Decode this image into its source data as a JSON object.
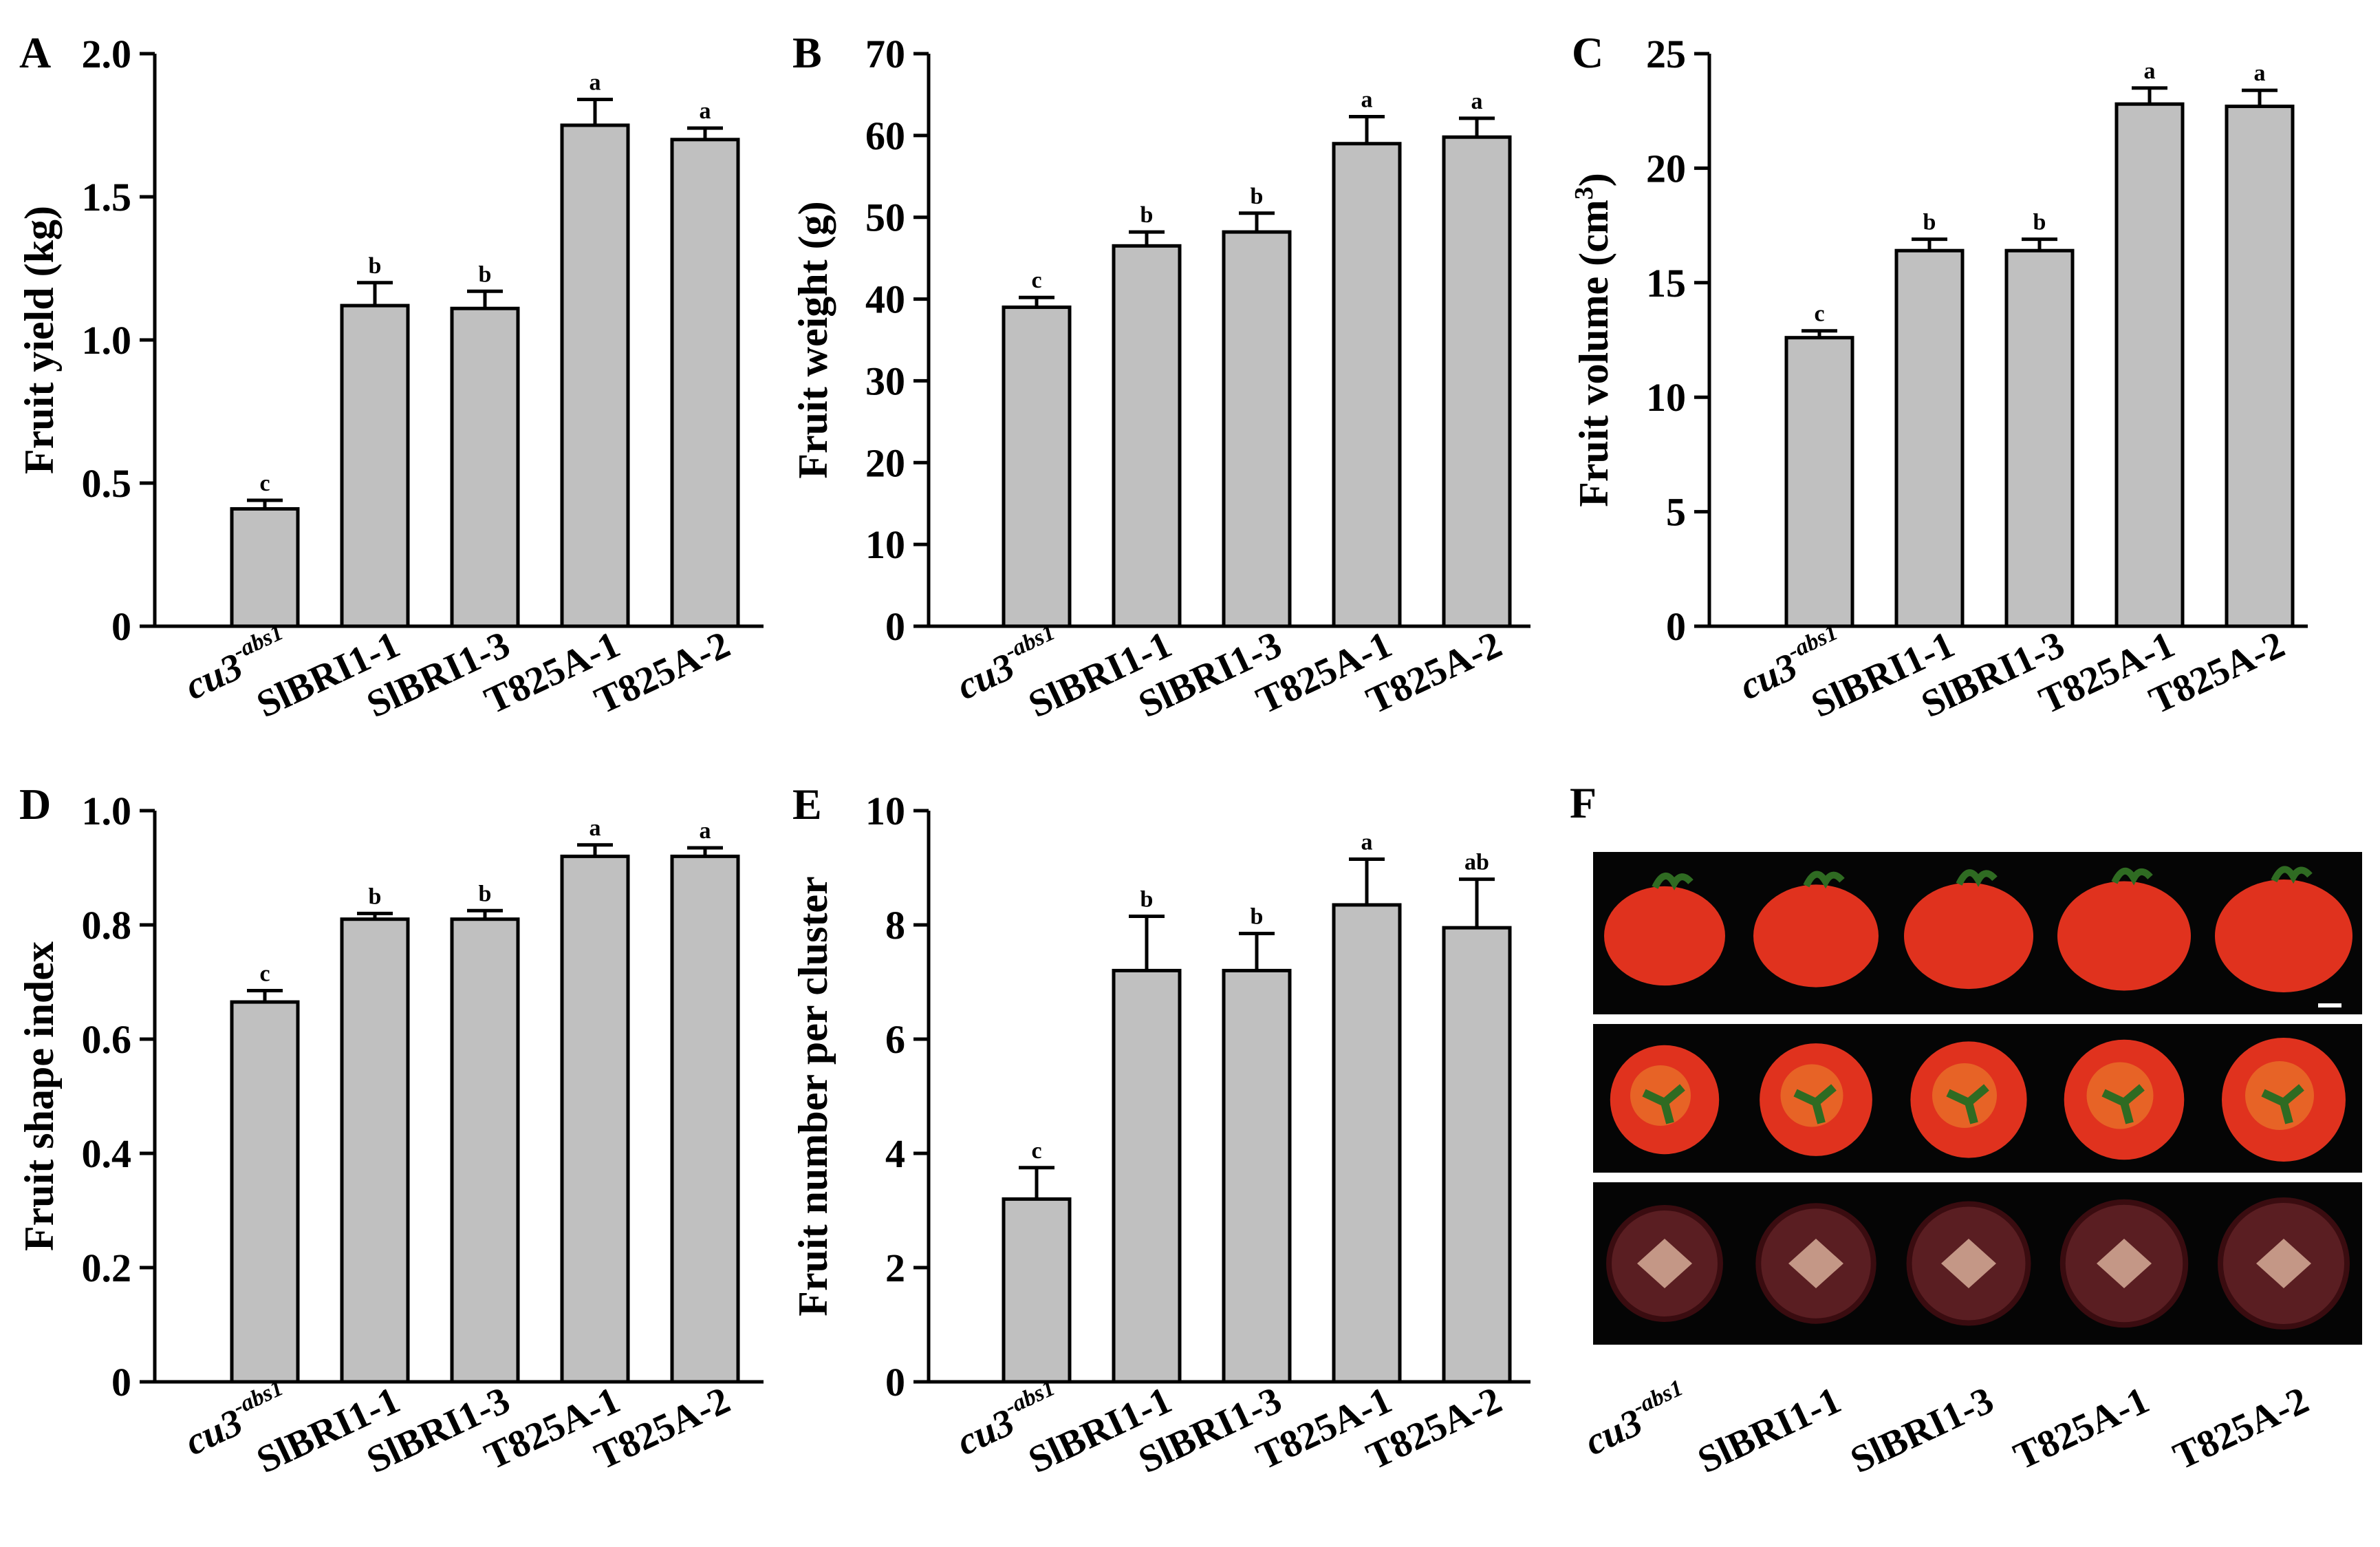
{
  "colors": {
    "bar": "#c0c0c0",
    "stroke": "#000000",
    "photo_bg": "#050505",
    "fruit": "#e0321e",
    "fruit_light": "#f0a030",
    "cut": "#5a1e22",
    "cut_light": "#e8c0a8"
  },
  "labels": {
    "genotype_prefix": "cu3",
    "genotype_suffix": "-abs1",
    "categories": [
      "SlBRI1-1",
      "SlBRI1-3",
      "T825A-1",
      "T825A-2"
    ]
  },
  "chart_data": [
    {
      "panel": "A",
      "type": "bar",
      "ylabel": "Fruit yield (kg)",
      "ylim": [
        0,
        2.0
      ],
      "yticks": [
        "0",
        "0.5",
        "1.0",
        "1.5",
        "2.0"
      ],
      "values": [
        0.41,
        1.12,
        1.11,
        1.75,
        1.7
      ],
      "errors": [
        0.03,
        0.08,
        0.06,
        0.09,
        0.04
      ],
      "letters": [
        "c",
        "b",
        "b",
        "a",
        "a"
      ]
    },
    {
      "panel": "B",
      "type": "bar",
      "ylabel": "Fruit weight (g)",
      "ylim": [
        0,
        70
      ],
      "yticks": [
        "0",
        "10",
        "20",
        "30",
        "40",
        "50",
        "60",
        "70"
      ],
      "values": [
        39.0,
        46.5,
        48.2,
        59.0,
        59.8
      ],
      "errors": [
        1.2,
        1.7,
        2.3,
        3.3,
        2.3
      ],
      "letters": [
        "c",
        "b",
        "b",
        "a",
        "a"
      ]
    },
    {
      "panel": "C",
      "type": "bar",
      "ylabel": "Fruit volume (cm",
      "ylabel_sup": "3",
      "ylabel_end": ")",
      "ylim": [
        0,
        25
      ],
      "yticks": [
        "0",
        "5",
        "10",
        "15",
        "20",
        "25"
      ],
      "values": [
        12.6,
        16.4,
        16.4,
        22.8,
        22.7
      ],
      "errors": [
        0.3,
        0.5,
        0.5,
        0.7,
        0.7
      ],
      "letters": [
        "c",
        "b",
        "b",
        "a",
        "a"
      ]
    },
    {
      "panel": "D",
      "type": "bar",
      "ylabel": "Fruit shape index",
      "ylim": [
        0,
        1.0
      ],
      "yticks": [
        "0",
        "0.2",
        "0.4",
        "0.6",
        "0.8",
        "1.0"
      ],
      "values": [
        0.665,
        0.81,
        0.81,
        0.92,
        0.92
      ],
      "errors": [
        0.02,
        0.01,
        0.015,
        0.02,
        0.015
      ],
      "letters": [
        "c",
        "b",
        "b",
        "a",
        "a"
      ]
    },
    {
      "panel": "E",
      "type": "bar",
      "ylabel": "Fruit number per cluster",
      "ylim": [
        0,
        10
      ],
      "yticks": [
        "0",
        "2",
        "4",
        "6",
        "8",
        "10"
      ],
      "values": [
        3.2,
        7.2,
        7.2,
        8.35,
        7.95
      ],
      "errors": [
        0.55,
        0.95,
        0.65,
        0.8,
        0.85
      ],
      "letters": [
        "c",
        "b",
        "b",
        "a",
        "ab"
      ]
    }
  ],
  "photo_panel": {
    "panel": "F",
    "rows": 3,
    "columns": 5
  }
}
